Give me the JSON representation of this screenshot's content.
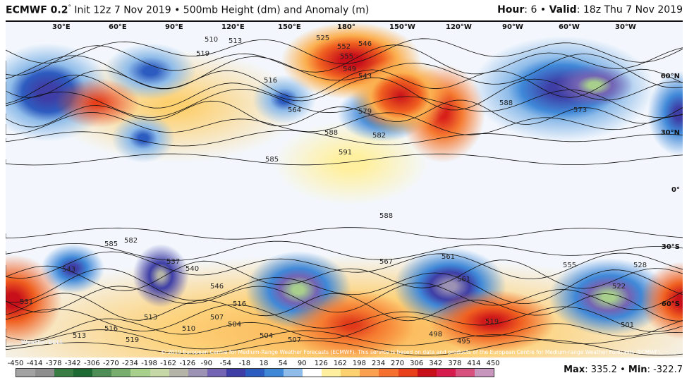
{
  "header": {
    "model": "ECMWF 0.2",
    "degree": "°",
    "init": "Init 12z 7 Nov 2019",
    "sep": "•",
    "product": "500mb Height (dm) and Anomaly (m)",
    "hour_label": "Hour",
    "hour": "6",
    "valid_label": "Valid",
    "valid": "18z Thu 7 Nov 2019"
  },
  "map": {
    "longitudes": [
      "30°E",
      "60°E",
      "90°E",
      "120°E",
      "150°E",
      "180°",
      "150°W",
      "120°W",
      "90°W",
      "60°W",
      "30°W"
    ],
    "latitudes": [
      "60°N",
      "30°N",
      "0°",
      "30°S",
      "60°S"
    ],
    "contour_labels": [
      "552",
      "555",
      "546",
      "549",
      "543",
      "525",
      "516",
      "513",
      "519",
      "510",
      "564",
      "588",
      "582",
      "591",
      "585",
      "579",
      "573",
      "588",
      "588",
      "585",
      "582",
      "543",
      "540",
      "537",
      "546",
      "561",
      "567",
      "561",
      "555",
      "531",
      "513",
      "507",
      "504",
      "516",
      "510",
      "519",
      "516",
      "513",
      "501",
      "498",
      "495",
      "519",
      "507",
      "504",
      "522",
      "528"
    ],
    "watermark": "WeatherBELL",
    "copyright": "© 2019 European Centre for Medium-Range Weather Forecasts (ECMWF). This service is based on data and products of the European Centre for Medium-range Weather Forecasts (ECMWF)."
  },
  "colorbar": {
    "labels": [
      "-450",
      "-414",
      "-378",
      "-342",
      "-306",
      "-270",
      "-234",
      "-198",
      "-162",
      "-126",
      "-90",
      "-54",
      "-18",
      "18",
      "54",
      "90",
      "126",
      "162",
      "198",
      "234",
      "270",
      "306",
      "342",
      "378",
      "414",
      "450"
    ],
    "colors": [
      "#a3a3a3",
      "#8e8e8e",
      "#3a7d44",
      "#1e6a34",
      "#4e8e56",
      "#77ad6d",
      "#a8d08c",
      "#c5d8a6",
      "#b4b4a8",
      "#9c92b4",
      "#7464b4",
      "#3e3ea6",
      "#2d5cc0",
      "#3f88d8",
      "#8fbce9",
      "#ffffff",
      "#fff0a0",
      "#fdd070",
      "#fba050",
      "#f67030",
      "#e8401a",
      "#c8101a",
      "#d61c4c",
      "#d8507e",
      "#c896bc"
    ]
  },
  "stats": {
    "max_label": "Max",
    "max": "335.2",
    "min_label": "Min",
    "min": "-322.7"
  }
}
